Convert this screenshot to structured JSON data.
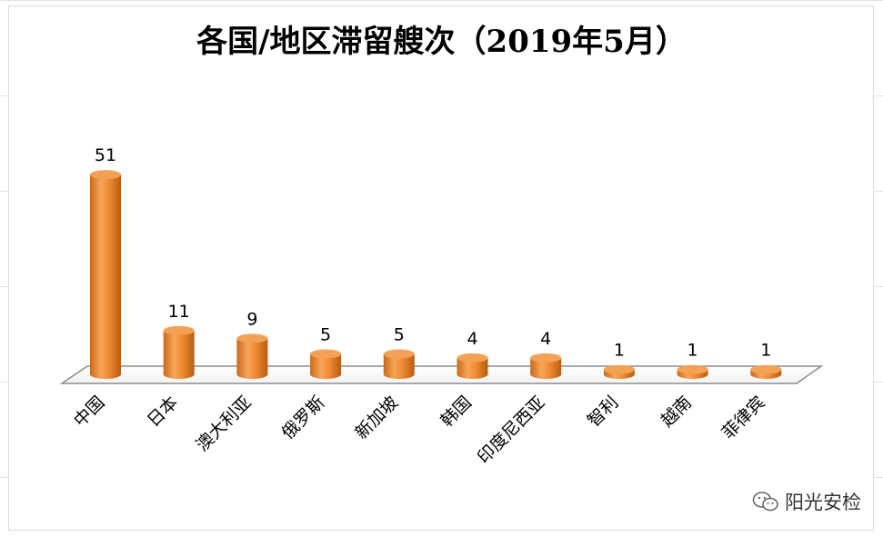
{
  "chart_data": {
    "type": "bar",
    "style": "3d-cylinder",
    "title": "各国/地区滞留艘次（2019年5月）",
    "categories": [
      "中国",
      "日本",
      "澳大利亚",
      "俄罗斯",
      "新加坡",
      "韩国",
      "印度尼西亚",
      "智利",
      "越南",
      "菲律宾"
    ],
    "values": [
      51,
      11,
      9,
      5,
      5,
      4,
      4,
      1,
      1,
      1
    ],
    "xlabel": "",
    "ylabel": "",
    "ylim": [
      0,
      55
    ],
    "grid": false,
    "legend": "none",
    "bar_color": "#f0923a"
  },
  "watermark": {
    "icon": "wechat-icon",
    "text": "阳光安检"
  }
}
